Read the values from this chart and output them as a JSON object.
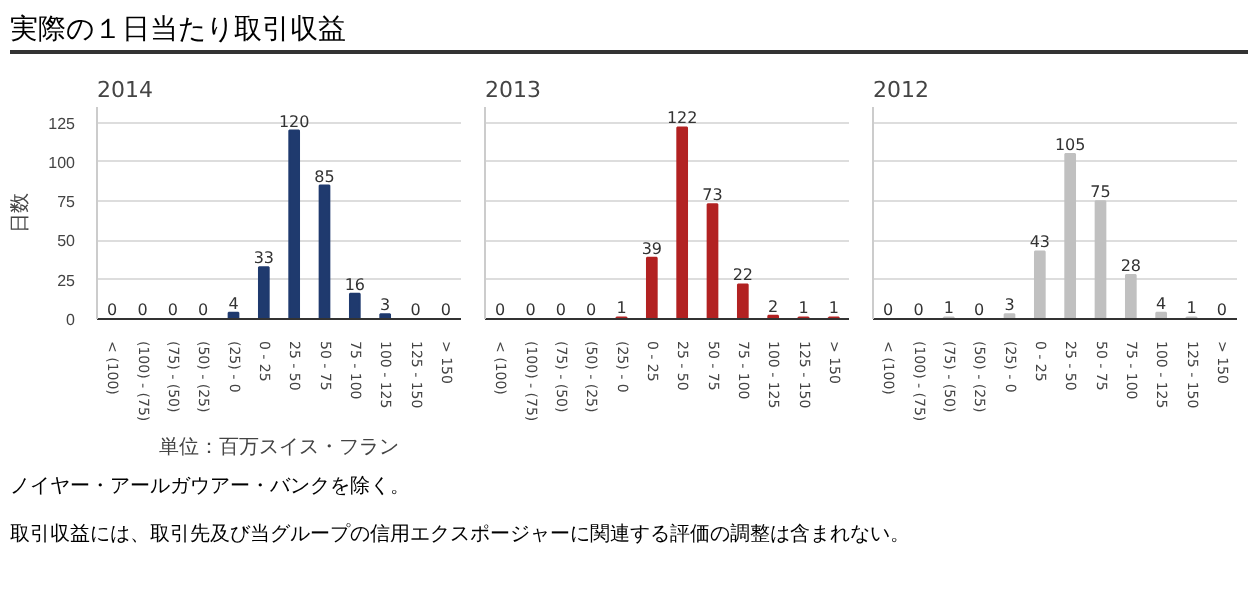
{
  "chart_data": [
    {
      "type": "bar",
      "title": "実際の１日当たり取引収益",
      "subtitle": "2014",
      "ylabel": "日数",
      "xlabel": "単位：百万スイス・フラン",
      "categories": [
        "< (100)",
        "(100) - (75)",
        "(75) - (50)",
        "(50) - (25)",
        "(25) - 0",
        "0 - 25",
        "25 - 50",
        "50 - 75",
        "75 - 100",
        "100 - 125",
        "125 - 150",
        "> 150"
      ],
      "values": [
        0,
        0,
        0,
        0,
        4,
        33,
        120,
        85,
        16,
        3,
        0,
        0
      ],
      "color": "#1f3a6e",
      "ylim": [
        0,
        135
      ],
      "yticks": [
        0,
        25,
        50,
        75,
        100,
        125
      ],
      "grid": "y",
      "data_labels": true,
      "annotations": [
        "ノイヤー・アールガウアー・バンクを除く。",
        "取引収益には、取引先及び当グループの信用エクスポージャーに関連する評価の調整は含まれない。"
      ]
    },
    {
      "type": "bar",
      "subtitle": "2013",
      "categories": [
        "< (100)",
        "(100) - (75)",
        "(75) - (50)",
        "(50) - (25)",
        "(25) - 0",
        "0 - 25",
        "25 - 50",
        "50 - 75",
        "75 - 100",
        "100 - 125",
        "125 - 150",
        "> 150"
      ],
      "values": [
        0,
        0,
        0,
        0,
        1,
        39,
        122,
        73,
        22,
        2,
        1,
        1
      ],
      "color": "#b22222",
      "ylim": [
        0,
        135
      ],
      "yticks": [
        0,
        25,
        50,
        75,
        100,
        125
      ],
      "grid": "y",
      "data_labels": true,
      "tick_labels": "x"
    },
    {
      "type": "bar",
      "subtitle": "2012",
      "categories": [
        "< (100)",
        "(100) - (75)",
        "(75) - (50)",
        "(50) - (25)",
        "(25) - 0",
        "0 - 25",
        "25 - 50",
        "50 - 75",
        "75 - 100",
        "100 - 125",
        "125 - 150",
        "> 150"
      ],
      "values": [
        0,
        0,
        1,
        0,
        3,
        43,
        105,
        75,
        28,
        4,
        1,
        0
      ],
      "color": "#c0c0c0",
      "ylim": [
        0,
        135
      ],
      "yticks": [
        0,
        25,
        50,
        75,
        100,
        125
      ],
      "grid": "y",
      "data_labels": true,
      "tick_labels": "x"
    }
  ]
}
